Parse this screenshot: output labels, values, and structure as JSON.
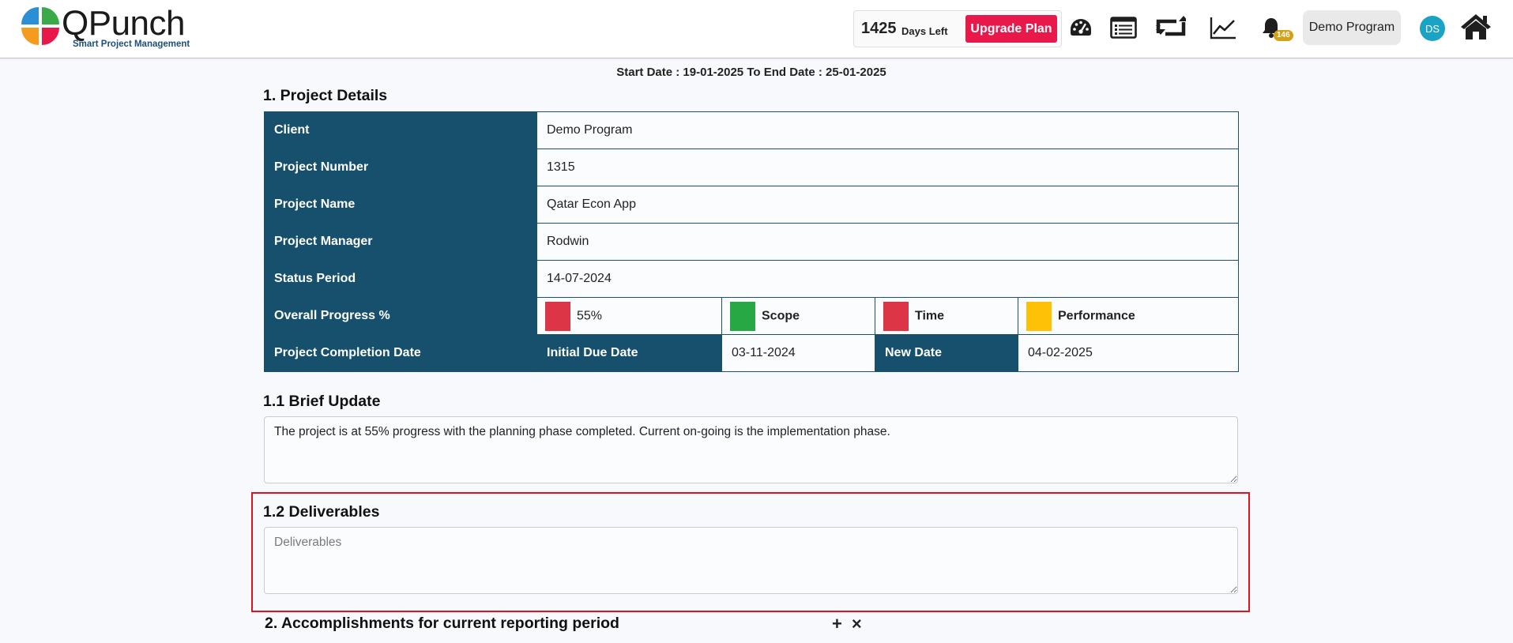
{
  "header": {
    "logo_text": "QPunch",
    "logo_tagline": "Smart Project Management",
    "days_left_count": "1425",
    "days_left_label": "Days Left",
    "upgrade_label": "Upgrade Plan",
    "notification_count": "146",
    "user_name": "Demo Program",
    "avatar_initials": "DS",
    "icons": [
      "dashboard-gauge-icon",
      "list-icon",
      "repeat-icon",
      "trend-chart-icon",
      "bell-icon",
      "home-icon"
    ]
  },
  "report": {
    "date_range": "Start Date : 19-01-2025 To End Date : 25-01-2025",
    "section1_title": "1. Project Details",
    "details": {
      "client_label": "Client",
      "client_value": "Demo Program",
      "project_number_label": "Project Number",
      "project_number_value": "1315",
      "project_name_label": "Project Name",
      "project_name_value": "Qatar Econ App",
      "project_manager_label": "Project Manager",
      "project_manager_value": "Rodwin",
      "status_period_label": "Status Period",
      "status_period_value": "14-07-2024",
      "overall_progress_label": "Overall Progress %",
      "overall_progress_value": "55%",
      "overall_progress_fraction": 0.55,
      "scope_label": "Scope",
      "time_label": "Time",
      "performance_label": "Performance",
      "completion_label": "Project Completion Date",
      "initial_due_label": "Initial Due Date",
      "initial_due_value": "03-11-2024",
      "new_date_label": "New Date",
      "new_date_value": "04-02-2025"
    },
    "status_colors": {
      "progress": "#dc3545",
      "scope": "#28a745",
      "time": "#dc3545",
      "performance": "#ffc107"
    },
    "brief_update_title": "1.1 Brief Update",
    "brief_update_text": "The project is at 55% progress with the planning phase completed. Current on-going is the implementation phase.",
    "deliverables_title": "1.2 Deliverables",
    "deliverables_placeholder": "Deliverables",
    "deliverables_value": "",
    "section2_title": "2. Accomplishments for current reporting period",
    "add_symbol": "+",
    "remove_symbol": "×"
  },
  "colors": {
    "header_cell_bg": "#17506d",
    "upgrade_button": "#e8194a",
    "highlight_border": "#e0141e",
    "avatar_bg": "#1ba3c6"
  }
}
